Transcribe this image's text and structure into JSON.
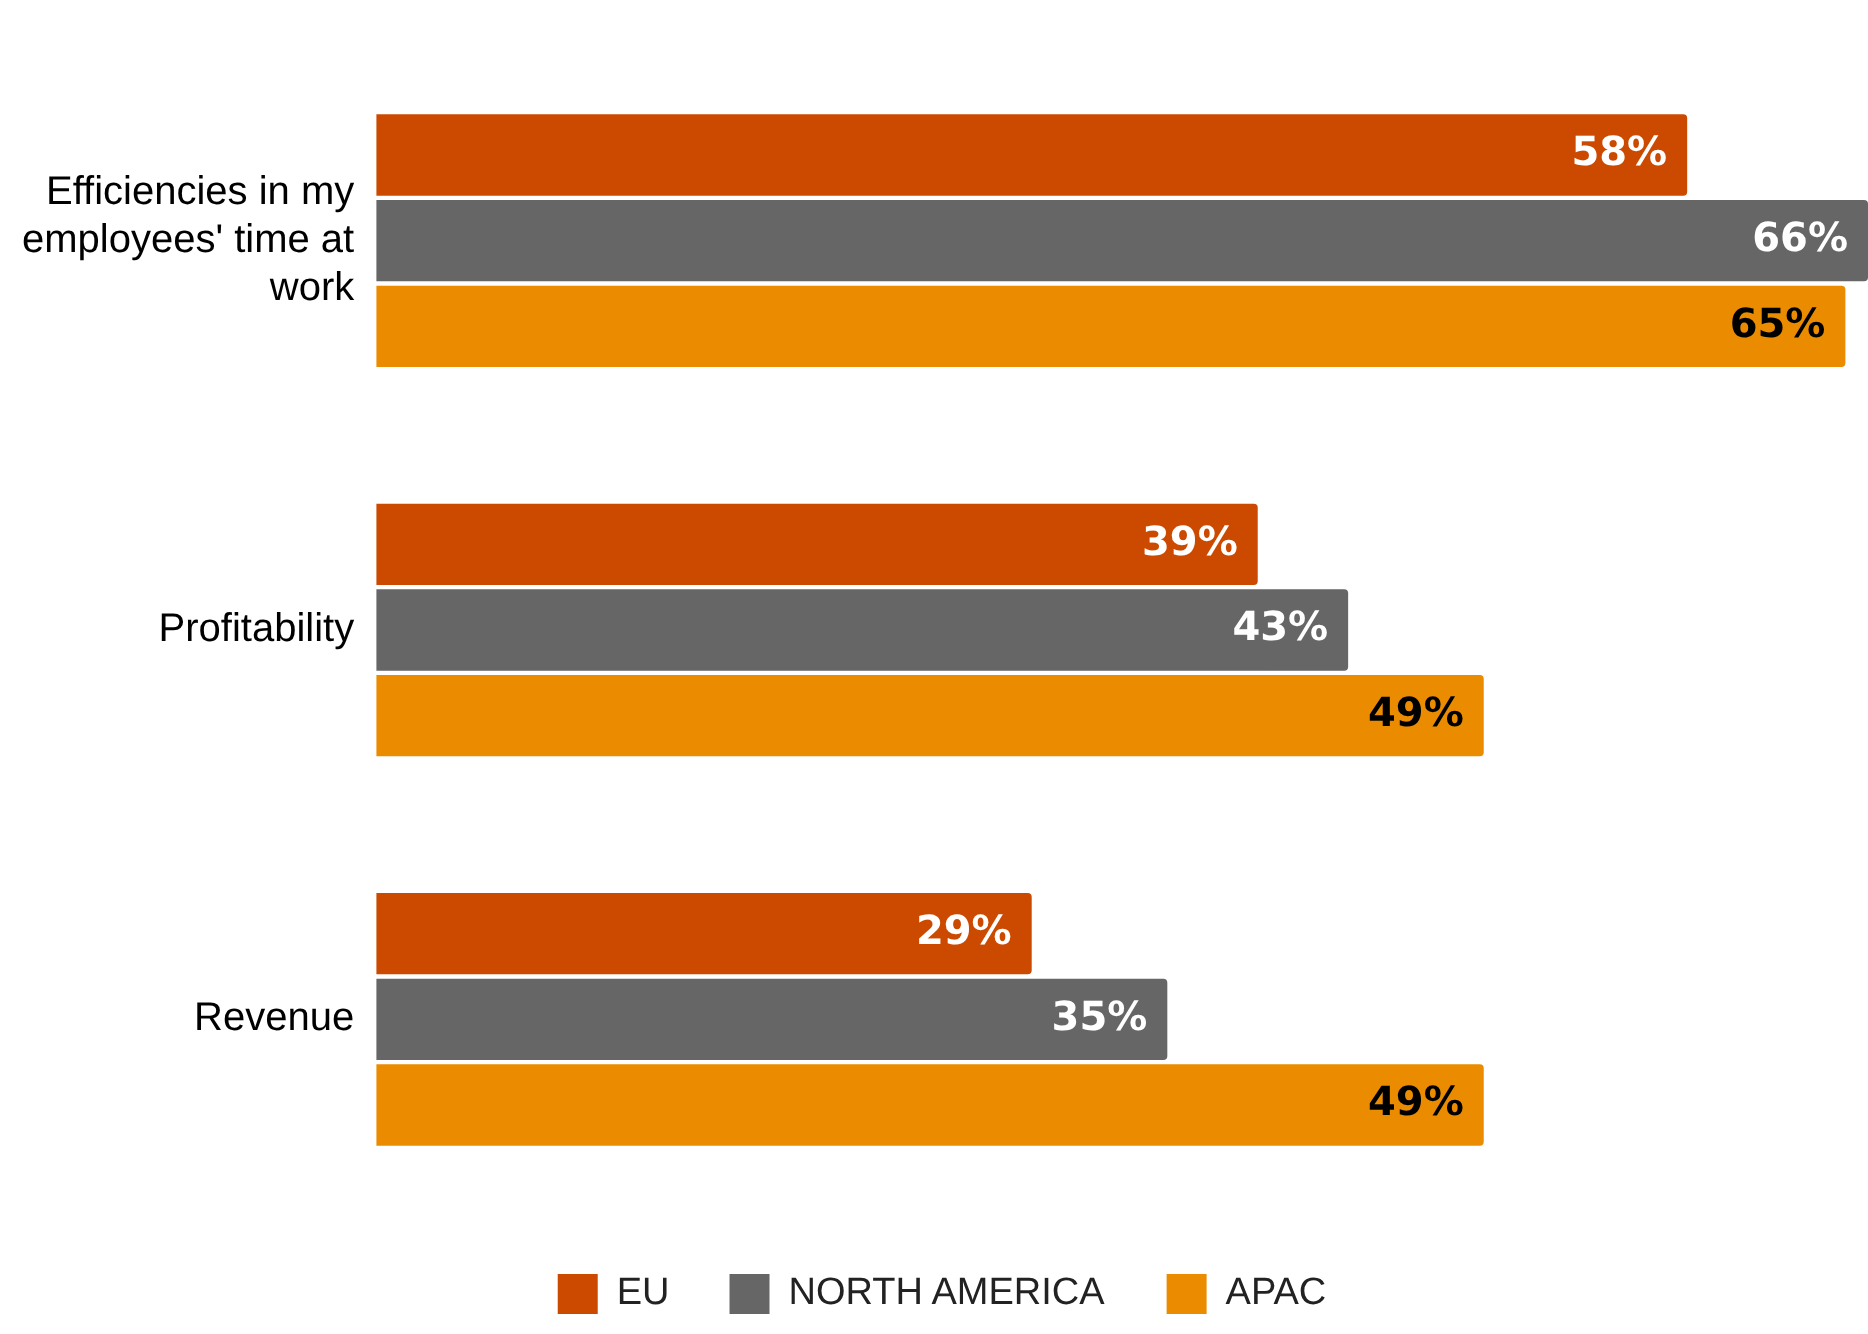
{
  "chart_data": {
    "type": "bar",
    "orientation": "horizontal",
    "categories": [
      "Efficiencies in my employees' time at work",
      "Profitability",
      "Revenue"
    ],
    "series": [
      {
        "name": "EU",
        "color": "#cc4a00",
        "values": [
          58,
          39,
          29
        ],
        "value_labels": [
          "58%",
          "39%",
          "29%"
        ]
      },
      {
        "name": "NORTH AMERICA",
        "color": "#666666",
        "values": [
          66,
          43,
          35
        ],
        "value_labels": [
          "66%",
          "43%",
          "35%"
        ]
      },
      {
        "name": "APAC",
        "color": "#eb8c00",
        "values": [
          65,
          49,
          49
        ],
        "value_labels": [
          "65%",
          "49%",
          "49%"
        ]
      }
    ],
    "legend": "bottom"
  }
}
